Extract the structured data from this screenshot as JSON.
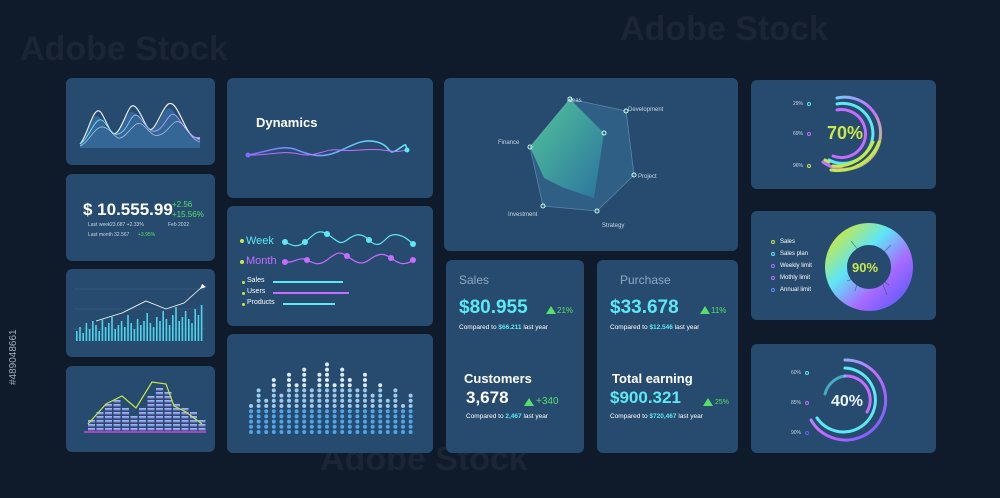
{
  "stock_id": "#489048661",
  "watermark": "Adobe Stock",
  "colors": {
    "bg": "#0f1a2b",
    "card": "#264b6e",
    "cyan": "#5ee7f5",
    "green": "#56e06b",
    "text_muted": "#c8d6e5"
  },
  "price_card": {
    "currency_value": "$ 10.555.99",
    "change_abs": "+2.56",
    "change_pct": "+15.56%",
    "last_week_label": "Last week",
    "last_week_value": "23.687 +2.33%",
    "date": "Feb 2022",
    "last_month_label": "Last month",
    "last_month_value": "32.567",
    "last_month_pct": "+3.95%"
  },
  "dynamics": {
    "title": "Dynamics"
  },
  "week_month": {
    "week_label": "Week",
    "month_label": "Month",
    "legend": [
      "Sales",
      "Users",
      "Products"
    ]
  },
  "radar": {
    "axes": [
      "Ideas",
      "Development",
      "Project",
      "Strategy",
      "Investment",
      "Finance"
    ]
  },
  "sales": {
    "title": "Sales",
    "value": "$80.955",
    "delta": "21%",
    "compared_label": "Compared to",
    "compared_value": "$66.211",
    "compared_suffix": "last year"
  },
  "customers": {
    "title": "Customers",
    "value": "3,678",
    "delta": "+340",
    "compared_label": "Compared to",
    "compared_value": "2,467",
    "compared_suffix": "last year"
  },
  "purchase": {
    "title": "Purchase",
    "value": "$33.678",
    "delta": "11%",
    "compared_label": "Compared to",
    "compared_value": "$12.546",
    "compared_suffix": "last year"
  },
  "total_earning": {
    "title": "Total earning",
    "value": "$900.321",
    "delta": "25%",
    "compared_label": "Compared to",
    "compared_value": "$720,467",
    "compared_suffix": "last year"
  },
  "gauge_top": {
    "value": "70%",
    "labels": [
      "29%",
      "69%",
      "96%"
    ]
  },
  "donut": {
    "value": "90%",
    "legend": [
      "Sales",
      "Sales plan",
      "Weekly limit",
      "Mothly limit",
      "Annual limit"
    ],
    "legend_colors": [
      "#c7e84a",
      "#5ee7f5",
      "#a86bff",
      "#c86bff",
      "#5e8cff"
    ]
  },
  "gauge_bottom": {
    "value": "40%",
    "labels": [
      "60%",
      "85%",
      "90%"
    ]
  }
}
